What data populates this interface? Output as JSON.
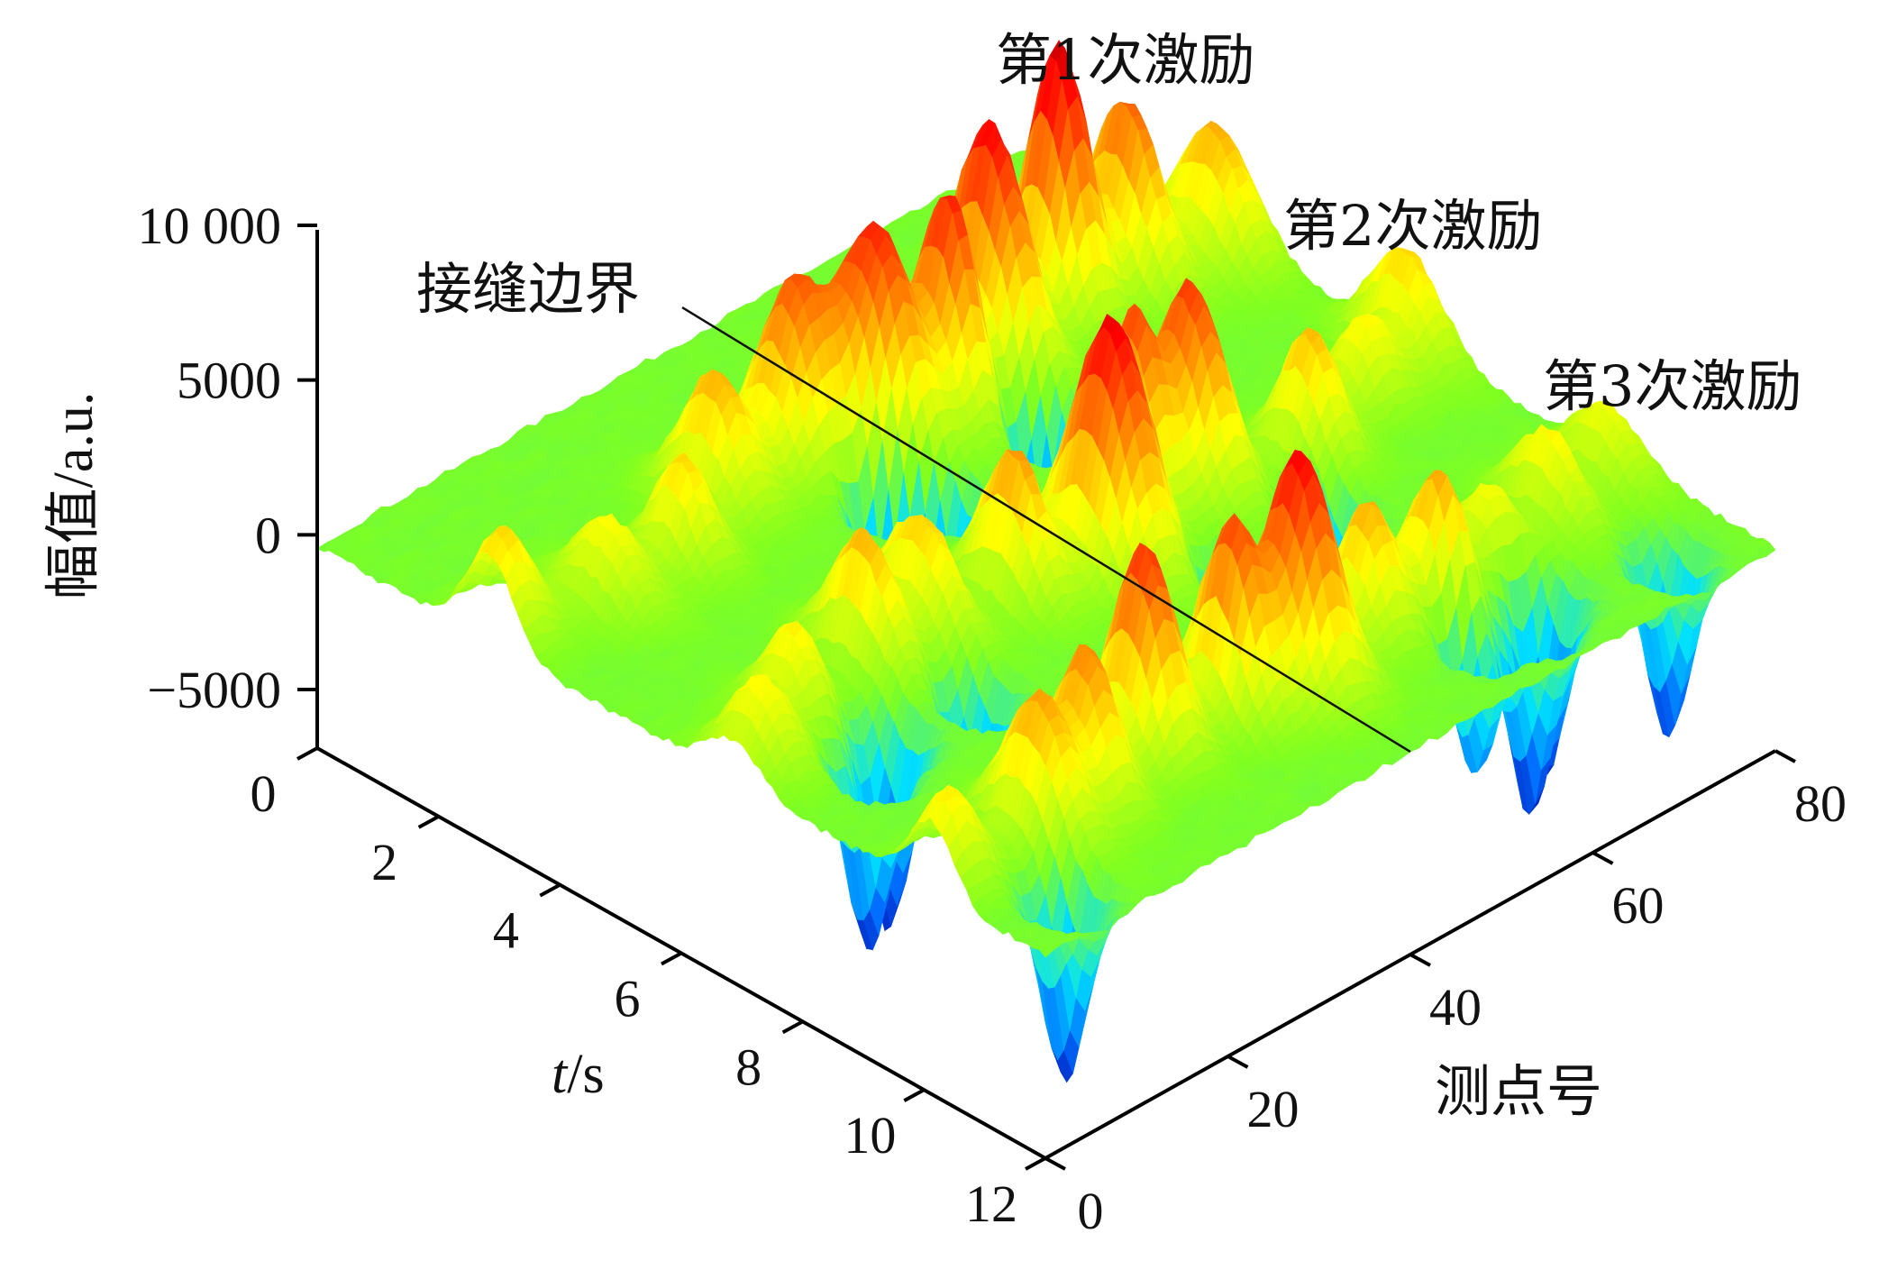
{
  "chart_data": {
    "type": "surface3d",
    "title": "",
    "zlabel": "幅值/a.u.",
    "xlabel_italic": "t",
    "xlabel_rest": "/s",
    "ylabel": "测点号",
    "z_ticks": [
      "10 000",
      "5000",
      "0",
      "−5000"
    ],
    "z_tick_values": [
      10000,
      5000,
      0,
      -5000
    ],
    "t_ticks": [
      "0",
      "2",
      "4",
      "6",
      "8",
      "10",
      "12"
    ],
    "t_tick_values": [
      0,
      2,
      4,
      6,
      8,
      10,
      12
    ],
    "p_ticks": [
      "0",
      "20",
      "40",
      "60",
      "80"
    ],
    "p_tick_values": [
      0,
      20,
      40,
      60,
      80
    ],
    "zlim": [
      -6500,
      10000
    ],
    "tlim": [
      0,
      12
    ],
    "plim": [
      0,
      80
    ],
    "annotations": {
      "excitation1": "第1次激励",
      "excitation2": "第2次激励",
      "excitation3": "第3次激励",
      "joint_boundary": "接缝边界"
    },
    "joint_boundary_point": 40,
    "excitations": [
      {
        "t": 3.0,
        "peak": 10000
      },
      {
        "t": 6.5,
        "peak": 8500
      },
      {
        "t": 9.8,
        "peak": 8000
      }
    ],
    "colormap": [
      "#0000a8",
      "#0070ff",
      "#00e0ff",
      "#80ff20",
      "#ffff00",
      "#ff8000",
      "#ff0000",
      "#800000"
    ]
  }
}
